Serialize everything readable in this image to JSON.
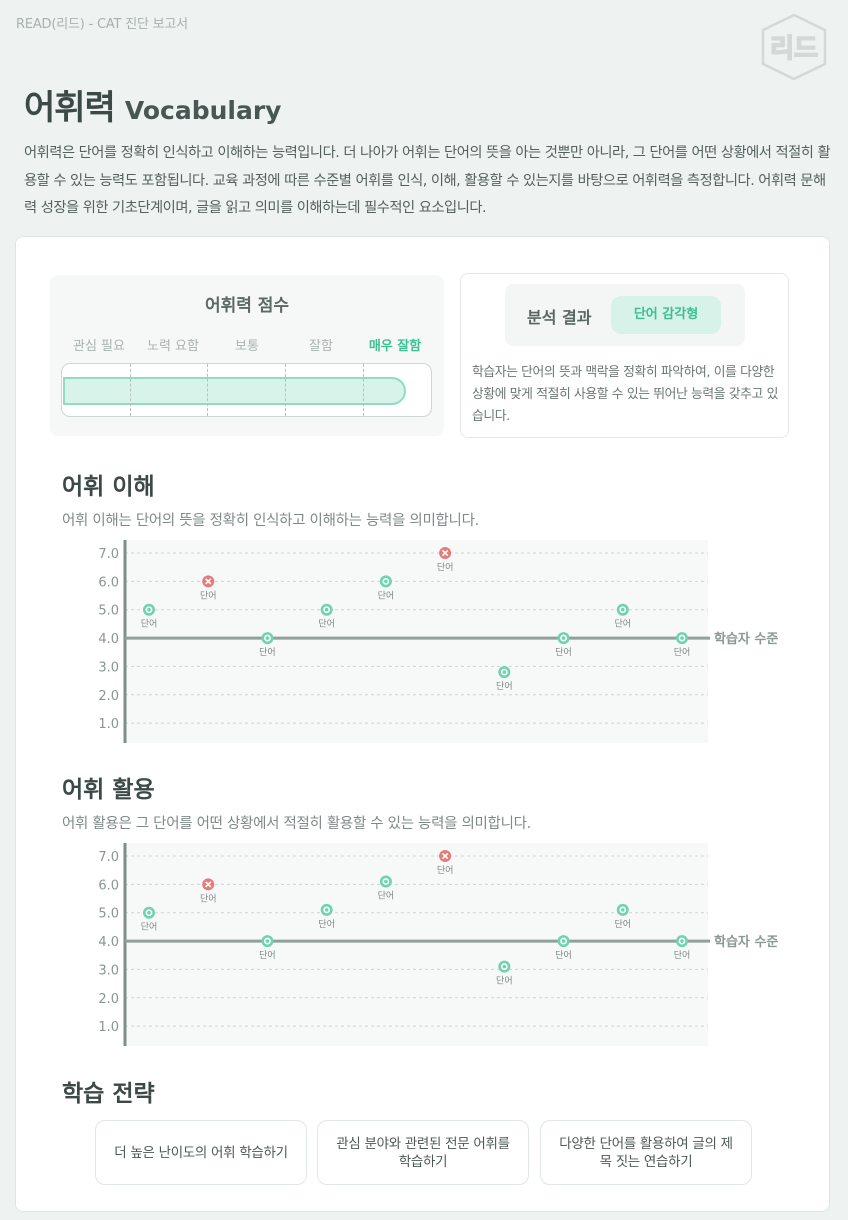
{
  "doc_header": "READ(리드) - CAT 진단 보고서",
  "logo_text": "리드",
  "title": {
    "ko": "어휘력",
    "en": "Vocabulary"
  },
  "intro": "어휘력은 단어를 정확히 인식하고 이해하는 능력입니다. 더 나아가 어휘는 단어의 뜻을 아는 것뿐만 아니라, 그 단어를 어떤 상황에서 적절히 활용할 수 있는 능력도 포함됩니다. 교육 과정에 따른 수준별 어휘를 인식, 이해, 활용할 수 있는지를 바탕으로 어휘력을 측정합니다.  어휘력 문해력 성장을 위한 기초단계이며, 글을 읽고 의미를 이해하는데 필수적인 요소입니다.",
  "score": {
    "title": "어휘력 점수",
    "levels": [
      "관심 필요",
      "노력 요함",
      "보통",
      "잘함",
      "매우 잘함"
    ],
    "active_level": 4,
    "fill_fraction": 0.93
  },
  "analysis": {
    "label": "분석 결과",
    "badge": "단어 감각형",
    "text": "학습자는 단어의 뜻과 맥락을 정확히 파악하여, 이를 다양한 상황에 맞게 적절히 사용할 수 있는 뛰어난 능력을 갖추고 있습니다."
  },
  "sections": [
    {
      "title": "어휘 이해",
      "desc": "어휘 이해는 단어의 뜻을 정확히 인식하고 이해하는 능력을 의미합니다."
    },
    {
      "title": "어휘 활용",
      "desc": "어휘 활용은 그 단어를 어떤 상황에서 적절히 활용할 수 있는 능력을 의미합니다."
    }
  ],
  "chart_data": [
    {
      "type": "scatter",
      "yticks": [
        "7.0",
        "6.0",
        "5.0",
        "4.0",
        "3.0",
        "2.0",
        "1.0"
      ],
      "ylim": [
        0.3,
        7.0
      ],
      "reference": {
        "value": 4.0,
        "label": "학습자 수준"
      },
      "point_label": "단어",
      "points": [
        {
          "x": 1,
          "y": 5.0,
          "correct": true
        },
        {
          "x": 2,
          "y": 6.0,
          "correct": false
        },
        {
          "x": 3,
          "y": 4.0,
          "correct": true
        },
        {
          "x": 4,
          "y": 5.0,
          "correct": true
        },
        {
          "x": 5,
          "y": 6.0,
          "correct": true
        },
        {
          "x": 6,
          "y": 7.0,
          "correct": false
        },
        {
          "x": 7,
          "y": 2.8,
          "correct": true
        },
        {
          "x": 8,
          "y": 4.0,
          "correct": true
        },
        {
          "x": 9,
          "y": 5.0,
          "correct": true
        },
        {
          "x": 10,
          "y": 4.0,
          "correct": true
        }
      ],
      "colors": {
        "correct": "#6fd3b0",
        "wrong": "#e57c7c",
        "reference": "#8fa09d"
      }
    },
    {
      "type": "scatter",
      "yticks": [
        "7.0",
        "6.0",
        "5.0",
        "4.0",
        "3.0",
        "2.0",
        "1.0"
      ],
      "ylim": [
        0.3,
        7.0
      ],
      "reference": {
        "value": 4.0,
        "label": "학습자 수준"
      },
      "point_label": "단어",
      "points": [
        {
          "x": 1,
          "y": 5.0,
          "correct": true
        },
        {
          "x": 2,
          "y": 6.0,
          "correct": false
        },
        {
          "x": 3,
          "y": 4.0,
          "correct": true
        },
        {
          "x": 4,
          "y": 5.1,
          "correct": true
        },
        {
          "x": 5,
          "y": 6.1,
          "correct": true
        },
        {
          "x": 6,
          "y": 7.0,
          "correct": false
        },
        {
          "x": 7,
          "y": 3.1,
          "correct": true
        },
        {
          "x": 8,
          "y": 4.0,
          "correct": true
        },
        {
          "x": 9,
          "y": 5.1,
          "correct": true
        },
        {
          "x": 10,
          "y": 4.0,
          "correct": true
        }
      ],
      "colors": {
        "correct": "#6fd3b0",
        "wrong": "#e57c7c",
        "reference": "#8fa09d"
      }
    }
  ],
  "strategy": {
    "title": "학습 전략",
    "items": [
      "더 높은 난이도의 어휘 학습하기",
      "관심 분야와 관련된 전문 어휘를 학습하기",
      "다양한 단어를 활용하여 글의 제목 짓는 연습하기"
    ]
  }
}
